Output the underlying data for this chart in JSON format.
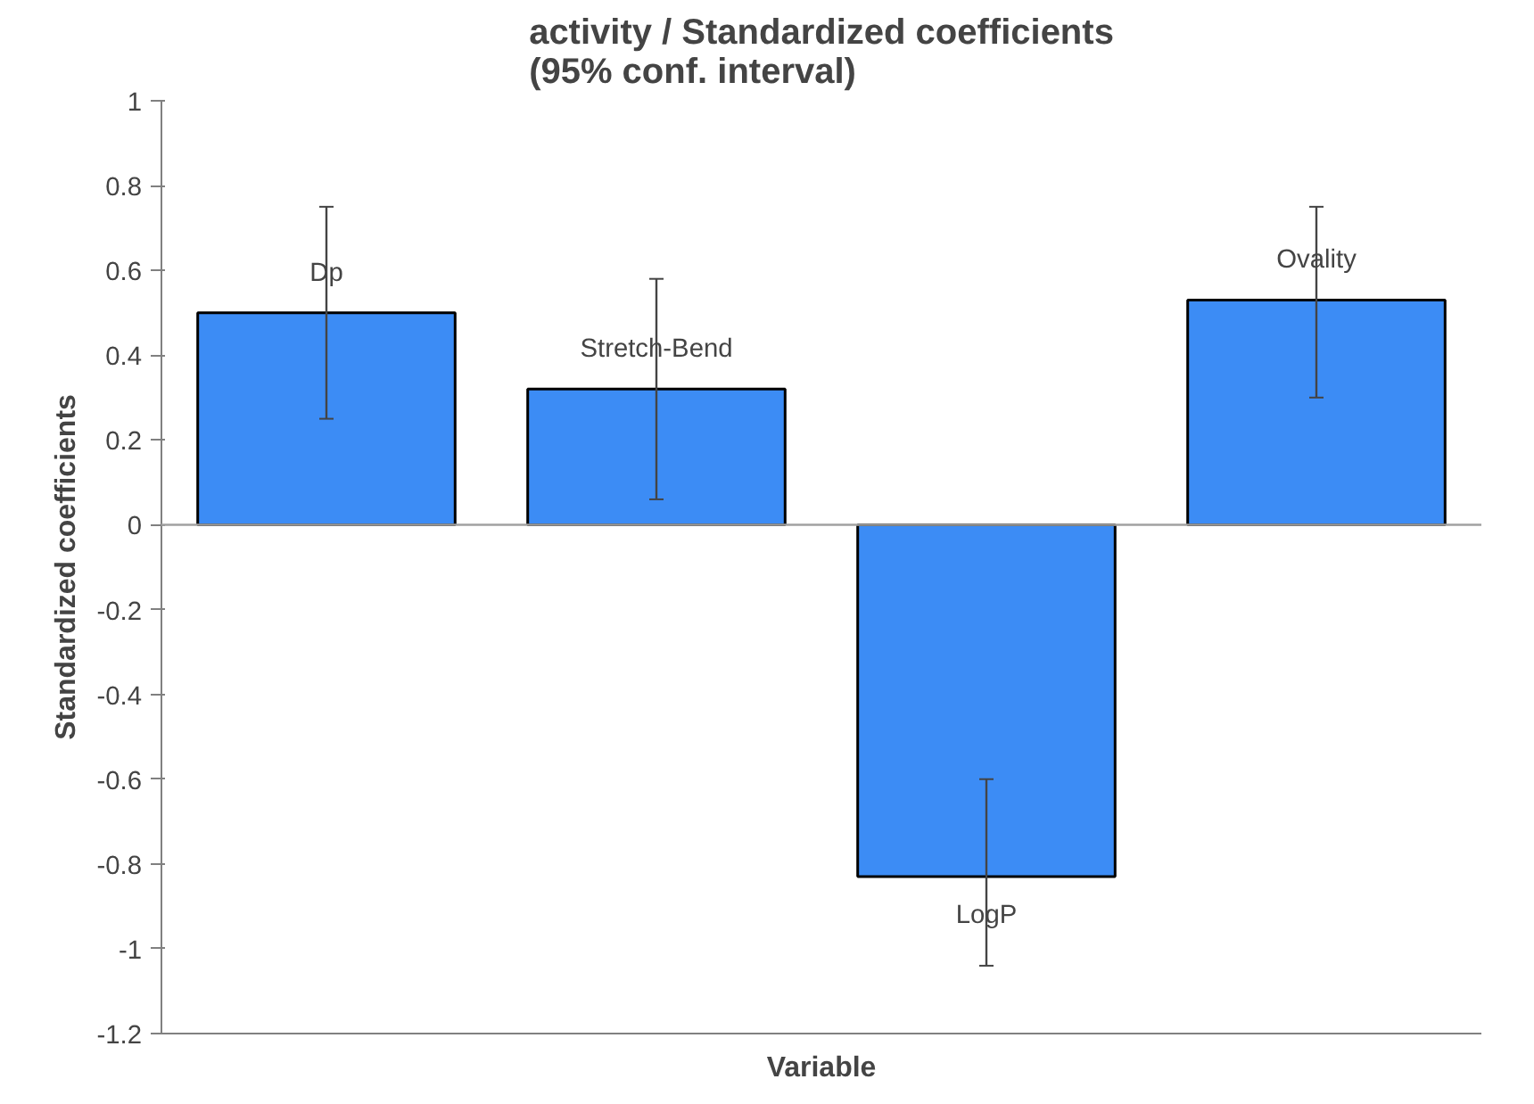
{
  "chart_data": {
    "type": "bar",
    "title": "activity / Standardized coefficients\n(95% conf. interval)",
    "xlabel": "Variable",
    "ylabel": "Standardized coefficients",
    "categories": [
      "Dp",
      "Stretch-Bend",
      "LogP",
      "Ovality"
    ],
    "values": [
      0.5,
      0.32,
      -0.83,
      0.53
    ],
    "errors": [
      [
        0.25,
        0.75
      ],
      [
        0.06,
        0.58
      ],
      [
        -1.04,
        -0.6
      ],
      [
        0.3,
        0.75
      ]
    ],
    "color": "#3c8cf5",
    "ylim": [
      -1.2,
      1
    ],
    "yticks": [
      -1.2,
      -1,
      -0.8,
      -0.6,
      -0.4,
      -0.2,
      0,
      0.2,
      0.4,
      0.6,
      0.8,
      1
    ],
    "tick_labels": "y"
  }
}
